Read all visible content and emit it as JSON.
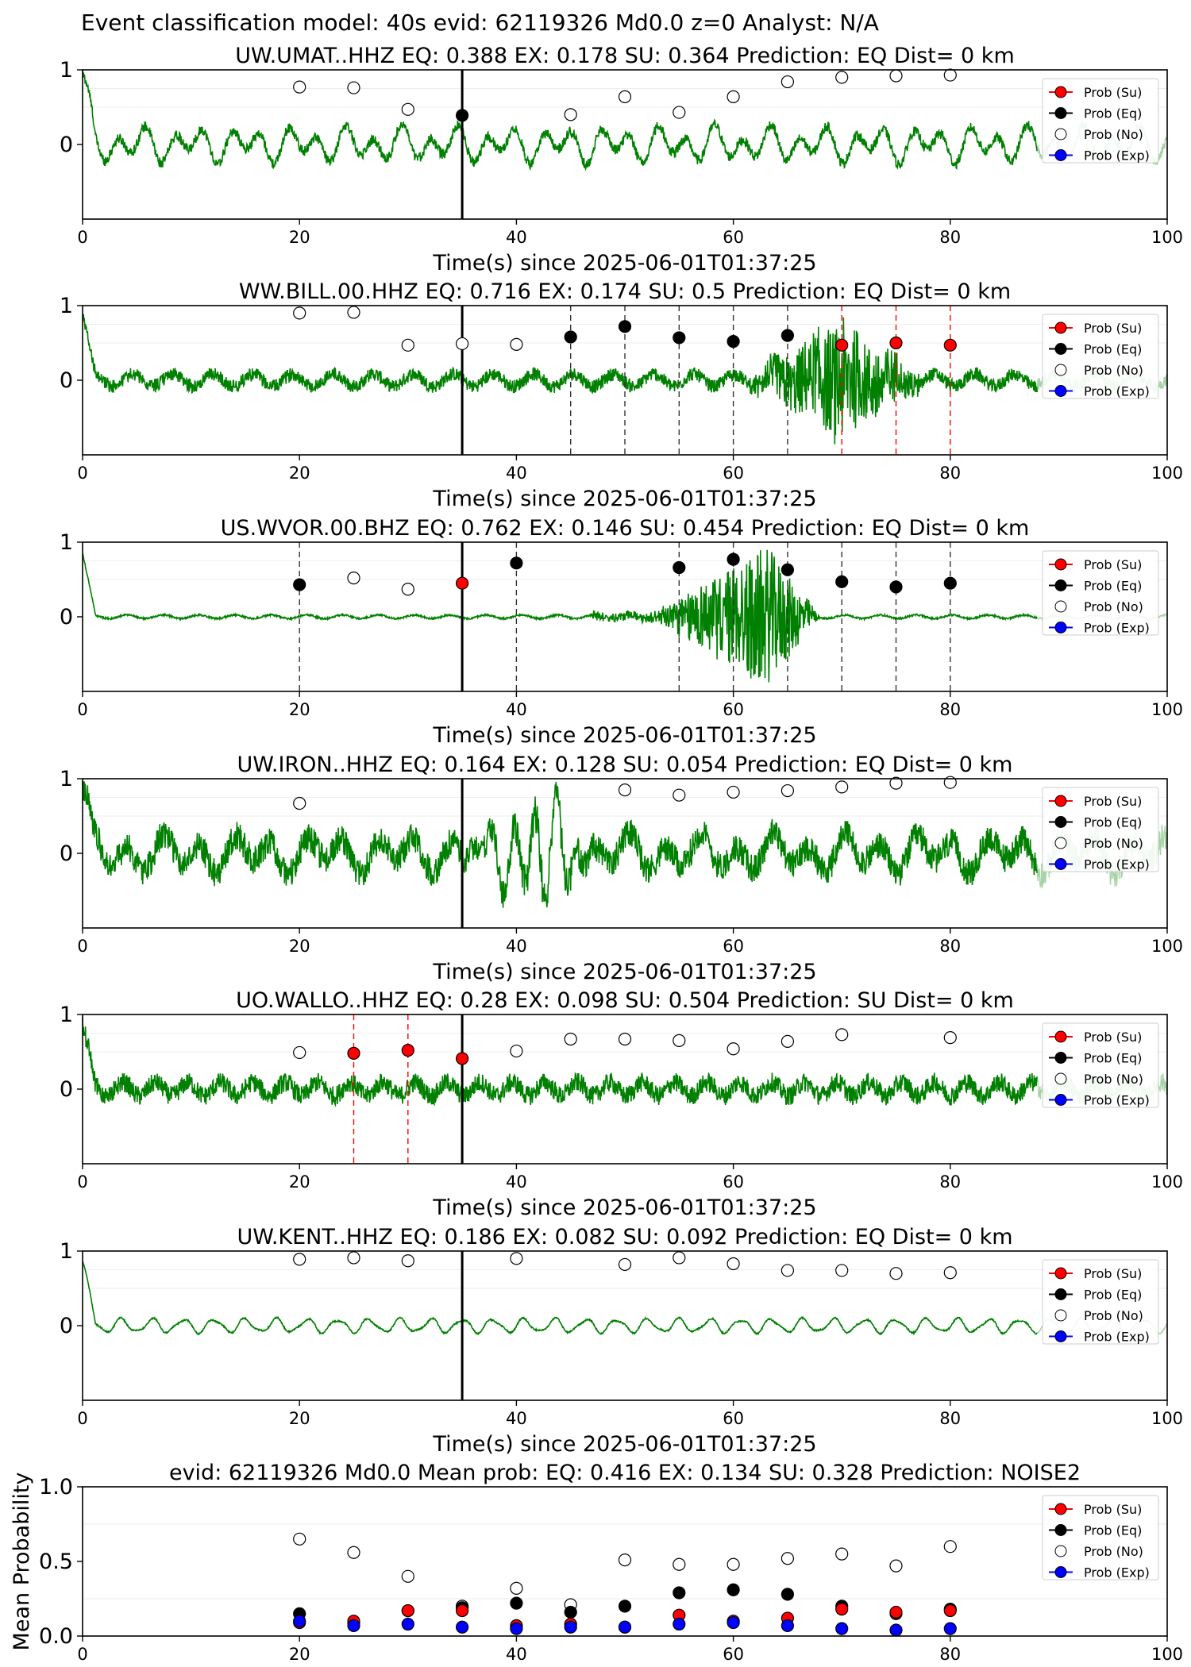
{
  "figure": {
    "suptitle": "Event classification model: 40s evid: 62119326 Md0.0 z=0 Analyst: N/A",
    "xlabel": "Time(s) since 2025-06-01T01:37:25",
    "legend_labels": [
      "Prob (Su)",
      "Prob (Eq)",
      "Prob (No)",
      "Prob (Exp)"
    ],
    "colors": {
      "su": "#ff0000",
      "eq": "#000000",
      "no": "#ffffff",
      "exp": "#0000ff",
      "trace": "#008000",
      "trace_faded": "#cfe6cf"
    }
  },
  "chart_data": [
    {
      "type": "line",
      "title": "UW.UMAT..HHZ   EQ: 0.388  EX: 0.178  SU: 0.364   Prediction: EQ    Dist= 0 km",
      "xlim": [
        0,
        100
      ],
      "ylim": [
        -1,
        1
      ],
      "x_ticks": [
        0,
        20,
        40,
        60,
        80,
        100
      ],
      "y_ticks": [
        1,
        0
      ],
      "trace": {
        "style": "lowfreq",
        "amp": 0.3
      },
      "pick_time": 35,
      "no_points": [
        [
          20,
          0.77
        ],
        [
          25,
          0.76
        ],
        [
          30,
          0.47
        ],
        [
          45,
          0.4
        ],
        [
          50,
          0.64
        ],
        [
          55,
          0.43
        ],
        [
          60,
          0.64
        ],
        [
          65,
          0.84
        ],
        [
          70,
          0.9
        ],
        [
          75,
          0.92
        ],
        [
          80,
          0.93
        ]
      ],
      "eq_points": [
        [
          35,
          0.39
        ]
      ],
      "su_points": [],
      "eq_lines": [],
      "su_lines": []
    },
    {
      "type": "line",
      "title": "WW.BILL.00.HHZ   EQ: 0.716  EX: 0.174  SU: 0.5   Prediction: EQ    Dist= 0 km",
      "xlim": [
        0,
        100
      ],
      "ylim": [
        -1,
        1
      ],
      "x_ticks": [
        0,
        20,
        40,
        60,
        80,
        100
      ],
      "y_ticks": [
        1,
        0
      ],
      "trace": {
        "style": "noise_burst",
        "amp": 0.15,
        "burst_start": 61,
        "burst_peak": 70,
        "burst_end": 78,
        "burst_amp": 0.8
      },
      "pick_time": 35,
      "no_points": [
        [
          20,
          0.9
        ],
        [
          25,
          0.91
        ],
        [
          30,
          0.47
        ],
        [
          35,
          0.49
        ],
        [
          40,
          0.48
        ]
      ],
      "eq_points": [
        [
          45,
          0.58
        ],
        [
          50,
          0.72
        ],
        [
          55,
          0.57
        ],
        [
          60,
          0.52
        ],
        [
          65,
          0.6
        ]
      ],
      "su_points": [
        [
          70,
          0.47
        ],
        [
          75,
          0.5
        ],
        [
          80,
          0.47
        ]
      ],
      "eq_lines": [
        45,
        50,
        55,
        60,
        65
      ],
      "su_lines": [
        70,
        75,
        80
      ]
    },
    {
      "type": "line",
      "title": "US.WVOR.00.BHZ   EQ: 0.762  EX: 0.146  SU: 0.454   Prediction: EQ    Dist= 0 km",
      "xlim": [
        0,
        100
      ],
      "ylim": [
        -1,
        1
      ],
      "x_ticks": [
        0,
        20,
        40,
        60,
        80,
        100
      ],
      "y_ticks": [
        1,
        0
      ],
      "trace": {
        "style": "quiet_burst",
        "amp": 0.04,
        "burst_start": 52,
        "burst_peak": 63,
        "burst_end": 68,
        "burst_amp": 0.95
      },
      "pick_time": 35,
      "no_points": [
        [
          25,
          0.52
        ],
        [
          30,
          0.37
        ]
      ],
      "eq_points": [
        [
          20,
          0.43
        ],
        [
          40,
          0.72
        ],
        [
          55,
          0.66
        ],
        [
          60,
          0.77
        ],
        [
          65,
          0.63
        ],
        [
          70,
          0.47
        ],
        [
          75,
          0.4
        ],
        [
          80,
          0.45
        ]
      ],
      "su_points": [
        [
          35,
          0.45
        ]
      ],
      "eq_lines": [
        20,
        40,
        55,
        60,
        65,
        70,
        75,
        80
      ],
      "su_lines": []
    },
    {
      "type": "line",
      "title": "UW.IRON..HHZ   EQ: 0.164  EX: 0.128  SU: 0.054   Prediction: EQ    Dist= 0 km",
      "xlim": [
        0,
        100
      ],
      "ylim": [
        -1,
        1
      ],
      "x_ticks": [
        0,
        20,
        40,
        60,
        80,
        100
      ],
      "y_ticks": [
        1,
        0
      ],
      "trace": {
        "style": "noisy_lowfreq",
        "amp": 0.35,
        "burst_start": 35,
        "burst_peak": 43,
        "burst_end": 47,
        "burst_amp": 0.7
      },
      "pick_time": 35,
      "no_points": [
        [
          20,
          0.67
        ],
        [
          50,
          0.85
        ],
        [
          55,
          0.78
        ],
        [
          60,
          0.82
        ],
        [
          65,
          0.84
        ],
        [
          70,
          0.89
        ],
        [
          75,
          0.94
        ],
        [
          80,
          0.95
        ]
      ],
      "eq_points": [],
      "su_points": [],
      "eq_lines": [],
      "su_lines": []
    },
    {
      "type": "line",
      "title": "UO.WALLO..HHZ   EQ: 0.28  EX: 0.098  SU: 0.504   Prediction: SU    Dist= 0 km",
      "xlim": [
        0,
        100
      ],
      "ylim": [
        -1,
        1
      ],
      "x_ticks": [
        0,
        20,
        40,
        60,
        80,
        100
      ],
      "y_ticks": [
        1,
        0
      ],
      "trace": {
        "style": "noise",
        "amp": 0.2
      },
      "pick_time": 35,
      "no_points": [
        [
          20,
          0.49
        ],
        [
          40,
          0.51
        ],
        [
          45,
          0.67
        ],
        [
          50,
          0.67
        ],
        [
          55,
          0.65
        ],
        [
          60,
          0.54
        ],
        [
          65,
          0.64
        ],
        [
          70,
          0.73
        ],
        [
          80,
          0.69
        ]
      ],
      "eq_points": [],
      "su_points": [
        [
          25,
          0.48
        ],
        [
          30,
          0.52
        ],
        [
          35,
          0.41
        ]
      ],
      "eq_lines": [],
      "su_lines": [
        25,
        30
      ]
    },
    {
      "type": "line",
      "title": "UW.KENT..HHZ   EQ: 0.186  EX: 0.082  SU: 0.092   Prediction: EQ    Dist= 0 km",
      "xlim": [
        0,
        100
      ],
      "ylim": [
        -1,
        1
      ],
      "x_ticks": [
        0,
        20,
        40,
        60,
        80,
        100
      ],
      "y_ticks": [
        1,
        0
      ],
      "trace": {
        "style": "smooth",
        "amp": 0.12
      },
      "pick_time": 35,
      "no_points": [
        [
          20,
          0.89
        ],
        [
          25,
          0.91
        ],
        [
          30,
          0.87
        ],
        [
          40,
          0.9
        ],
        [
          50,
          0.82
        ],
        [
          55,
          0.91
        ],
        [
          60,
          0.83
        ],
        [
          65,
          0.74
        ],
        [
          70,
          0.74
        ],
        [
          75,
          0.7
        ],
        [
          80,
          0.71
        ]
      ],
      "eq_points": [],
      "su_points": [],
      "eq_lines": [],
      "su_lines": []
    },
    {
      "type": "scatter",
      "title": "evid: 62119326  Md0.0   Mean prob:   EQ: 0.416  EX: 0.134  SU: 0.328   Prediction: NOISE2",
      "ylabel": "Mean Probability",
      "xlim": [
        0,
        100
      ],
      "ylim": [
        0,
        1
      ],
      "x_ticks": [
        0,
        20,
        40,
        60,
        80,
        100
      ],
      "y_ticks": [
        1.0,
        0.5,
        0.0
      ],
      "y_tick_labels": [
        "1.0",
        "0.5",
        "0.0"
      ],
      "series": [
        {
          "name": "Prob (No)",
          "points": [
            [
              20,
              0.65
            ],
            [
              25,
              0.56
            ],
            [
              30,
              0.4
            ],
            [
              35,
              0.2
            ],
            [
              40,
              0.32
            ],
            [
              45,
              0.21
            ],
            [
              50,
              0.51
            ],
            [
              55,
              0.48
            ],
            [
              60,
              0.48
            ],
            [
              65,
              0.52
            ],
            [
              70,
              0.55
            ],
            [
              75,
              0.47
            ],
            [
              80,
              0.6
            ]
          ]
        },
        {
          "name": "Prob (Eq)",
          "points": [
            [
              20,
              0.15
            ],
            [
              25,
              0.09
            ],
            [
              30,
              0.17
            ],
            [
              35,
              0.19
            ],
            [
              40,
              0.22
            ],
            [
              45,
              0.16
            ],
            [
              50,
              0.2
            ],
            [
              55,
              0.29
            ],
            [
              60,
              0.31
            ],
            [
              65,
              0.28
            ],
            [
              70,
              0.2
            ],
            [
              75,
              0.15
            ],
            [
              80,
              0.18
            ]
          ]
        },
        {
          "name": "Prob (Su)",
          "points": [
            [
              20,
              0.09
            ],
            [
              25,
              0.1
            ],
            [
              30,
              0.17
            ],
            [
              35,
              0.17
            ],
            [
              40,
              0.07
            ],
            [
              45,
              0.08
            ],
            [
              50,
              0.06
            ],
            [
              55,
              0.14
            ],
            [
              60,
              0.1
            ],
            [
              65,
              0.12
            ],
            [
              70,
              0.18
            ],
            [
              75,
              0.16
            ],
            [
              80,
              0.17
            ]
          ]
        },
        {
          "name": "Prob (Exp)",
          "points": [
            [
              20,
              0.1
            ],
            [
              25,
              0.07
            ],
            [
              30,
              0.08
            ],
            [
              35,
              0.06
            ],
            [
              40,
              0.05
            ],
            [
              45,
              0.06
            ],
            [
              50,
              0.06
            ],
            [
              55,
              0.08
            ],
            [
              60,
              0.09
            ],
            [
              65,
              0.07
            ],
            [
              70,
              0.05
            ],
            [
              75,
              0.04
            ],
            [
              80,
              0.05
            ]
          ]
        }
      ]
    }
  ]
}
